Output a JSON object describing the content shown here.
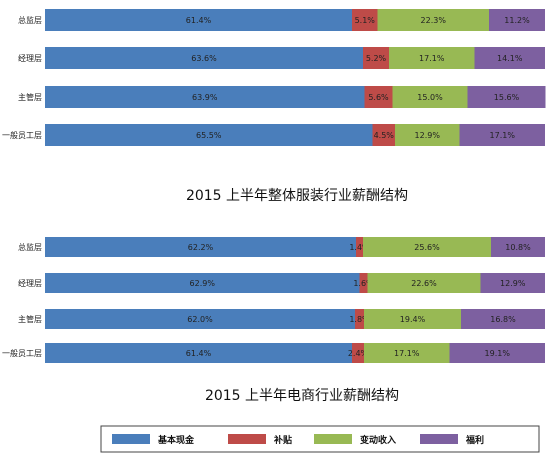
{
  "chart_data": [
    {
      "type": "bar",
      "stacked": true,
      "orientation": "horizontal",
      "title": "2015 上半年整体服装行业薪酬结构",
      "categories": [
        "总监层",
        "经理层",
        "主管层",
        "一般员工层"
      ],
      "series": [
        {
          "name": "基本现金",
          "color": "#4A7EBB",
          "values": [
            61.4,
            63.6,
            63.9,
            65.5
          ]
        },
        {
          "name": "补贴",
          "color": "#BE4B48",
          "values": [
            5.1,
            5.2,
            5.6,
            4.5
          ]
        },
        {
          "name": "变动收入",
          "color": "#98B954",
          "values": [
            22.3,
            17.1,
            15.0,
            12.9
          ]
        },
        {
          "name": "福利",
          "color": "#7D60A0",
          "values": [
            11.2,
            14.1,
            15.6,
            17.1
          ]
        }
      ],
      "value_labels": [
        [
          "61.4%",
          "63.6%",
          "63.9%",
          "65.5%"
        ],
        [
          "5.1%",
          "5.2%",
          "5.6%",
          "4.5%"
        ],
        [
          "22.3%",
          "17.1%",
          "15.0%",
          "12.9%"
        ],
        [
          "11.2%",
          "14.1%",
          "15.6%",
          "17.1%"
        ]
      ],
      "xlim": [
        0,
        100
      ]
    },
    {
      "type": "bar",
      "stacked": true,
      "orientation": "horizontal",
      "title": "2015 上半年电商行业薪酬结构",
      "categories": [
        "总监层",
        "经理层",
        "主管层",
        "一般员工层"
      ],
      "series": [
        {
          "name": "基本现金",
          "color": "#4A7EBB",
          "values": [
            62.2,
            62.9,
            62.0,
            61.4
          ]
        },
        {
          "name": "补贴",
          "color": "#BE4B48",
          "values": [
            1.4,
            1.6,
            1.8,
            2.4
          ]
        },
        {
          "name": "变动收入",
          "color": "#98B954",
          "values": [
            25.6,
            22.6,
            19.4,
            17.1
          ]
        },
        {
          "name": "福利",
          "color": "#7D60A0",
          "values": [
            10.8,
            12.9,
            16.8,
            19.1
          ]
        }
      ],
      "value_labels": [
        [
          "62.2%",
          "62.9%",
          "62.0%",
          "61.4%"
        ],
        [
          "1.4%",
          "1.6%",
          "1.8%",
          "2.4%"
        ],
        [
          "25.6%",
          "22.6%",
          "19.4%",
          "17.1%"
        ],
        [
          "10.8%",
          "12.9%",
          "16.8%",
          "19.1%"
        ]
      ],
      "xlim": [
        0,
        100
      ]
    }
  ],
  "legend": {
    "placement": "bottom",
    "items": [
      {
        "label": "基本现金",
        "color": "#4A7EBB"
      },
      {
        "label": "补贴",
        "color": "#BE4B48"
      },
      {
        "label": "变动收入",
        "color": "#98B954"
      },
      {
        "label": "福利",
        "color": "#7D60A0"
      }
    ]
  }
}
